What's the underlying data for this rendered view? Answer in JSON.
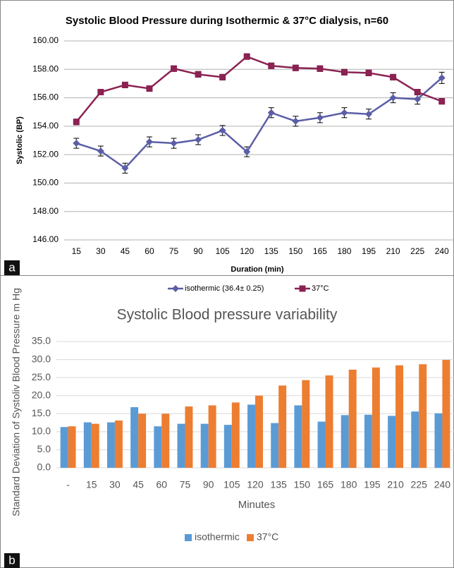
{
  "chart_data": [
    {
      "type": "line",
      "panel_label": "a",
      "title": "Systolic Blood Pressure during Isothermic & 37°C dialysis, n=60",
      "y_label": "Systolic (BP)",
      "x_label": "Duration (min)",
      "categories": [
        "15",
        "30",
        "45",
        "60",
        "75",
        "90",
        "105",
        "120",
        "135",
        "150",
        "165",
        "180",
        "195",
        "210",
        "225",
        "240"
      ],
      "series": [
        {
          "name": "isothermic (36.4± 0.25)",
          "color": "#5b5ea6",
          "marker": "diamond",
          "values": [
            152.8,
            152.25,
            151.05,
            152.9,
            152.8,
            153.05,
            153.7,
            152.2,
            154.95,
            154.35,
            154.6,
            154.95,
            154.85,
            156.0,
            155.9,
            157.4
          ],
          "errors": [
            0.35,
            0.35,
            0.35,
            0.35,
            0.35,
            0.35,
            0.35,
            0.35,
            0.35,
            0.35,
            0.35,
            0.35,
            0.35,
            0.35,
            0.35,
            0.4
          ]
        },
        {
          "name": "37°C",
          "color": "#8b2252",
          "marker": "square",
          "values": [
            154.3,
            156.4,
            156.9,
            156.65,
            158.05,
            157.65,
            157.45,
            158.9,
            158.25,
            158.1,
            158.05,
            157.8,
            157.75,
            157.45,
            156.4,
            155.75
          ],
          "errors": [
            0.2,
            0.2,
            0.2,
            0.2,
            0.2,
            0.2,
            0.2,
            0.2,
            0.2,
            0.2,
            0.2,
            0.2,
            0.2,
            0.2,
            0.2,
            0.2
          ]
        }
      ],
      "ylim": [
        146,
        160
      ],
      "yticks": [
        {
          "value": 146,
          "label": "146.00"
        },
        {
          "value": 148,
          "label": "148.00"
        },
        {
          "value": 150,
          "label": "150.00"
        },
        {
          "value": 152,
          "label": "152.00"
        },
        {
          "value": 154,
          "label": "154.00"
        },
        {
          "value": 156,
          "label": "156.00"
        },
        {
          "value": 158,
          "label": "158.00"
        },
        {
          "value": 160,
          "label": "160.00"
        }
      ],
      "grid": true,
      "legend": "bottom"
    },
    {
      "type": "bar",
      "panel_label": "b",
      "title": "Systolic Blood pressure variability",
      "y_label": "Standard Deviation of Systoliv Blood Pressure m Hg",
      "x_label": "Minutes",
      "categories": [
        "-",
        "15",
        "30",
        "45",
        "60",
        "75",
        "90",
        "105",
        "120",
        "135",
        "150",
        "165",
        "180",
        "195",
        "210",
        "225",
        "240"
      ],
      "series": [
        {
          "name": "isothermic",
          "color": "#5b9bd5",
          "values": [
            11.3,
            12.6,
            12.6,
            16.8,
            11.5,
            12.2,
            12.2,
            11.9,
            17.5,
            12.4,
            17.3,
            12.8,
            14.6,
            14.7,
            14.4,
            15.6,
            15.1
          ]
        },
        {
          "name": "37°C",
          "color": "#ed7d31",
          "values": [
            11.5,
            12.2,
            13.1,
            15.0,
            15.0,
            17.0,
            17.3,
            18.1,
            20.0,
            22.8,
            24.3,
            25.6,
            27.2,
            27.8,
            28.4,
            28.7,
            29.9
          ]
        }
      ],
      "ylim": [
        0,
        35
      ],
      "yticks": [
        {
          "value": 0,
          "label": "0.0"
        },
        {
          "value": 5,
          "label": "5.0"
        },
        {
          "value": 10,
          "label": "10.0"
        },
        {
          "value": 15,
          "label": "15.0"
        },
        {
          "value": 20,
          "label": "20.0"
        },
        {
          "value": 25,
          "label": "25.0"
        },
        {
          "value": 30,
          "label": "30.0"
        },
        {
          "value": 35,
          "label": "35.0"
        }
      ],
      "grid": true,
      "legend": "bottom"
    }
  ]
}
